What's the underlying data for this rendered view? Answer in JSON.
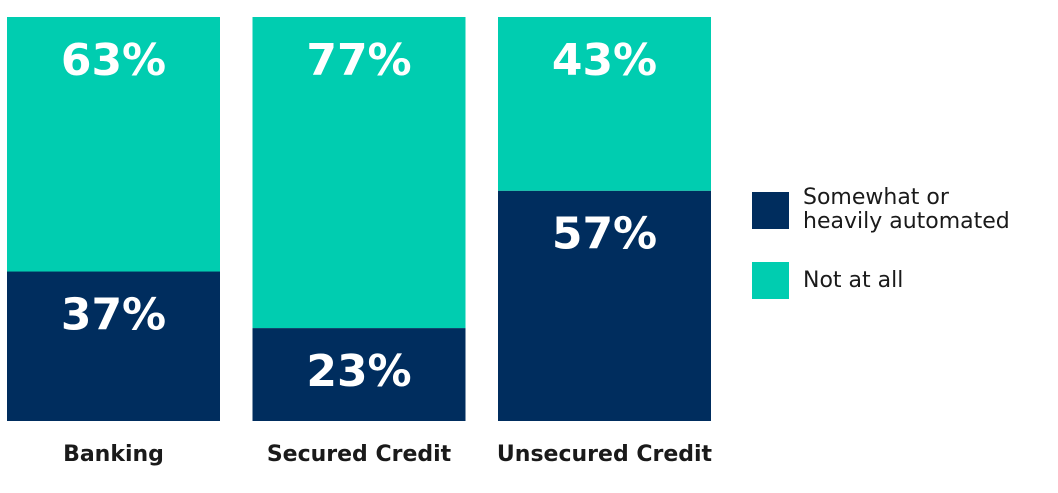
{
  "chart_data": {
    "type": "stacked-bar",
    "categories": [
      "Banking",
      "Secured Credit",
      "Unsecured Credit"
    ],
    "series": [
      {
        "name": "Somewhat or heavily automated",
        "color": "#002d5e",
        "values": [
          37,
          23,
          57
        ],
        "value_labels": [
          "37%",
          "23%",
          "57%"
        ]
      },
      {
        "name": "Not at all",
        "color": "#00cdb0",
        "values": [
          63,
          77,
          43
        ],
        "value_labels": [
          "63%",
          "77%",
          "43%"
        ]
      }
    ]
  }
}
